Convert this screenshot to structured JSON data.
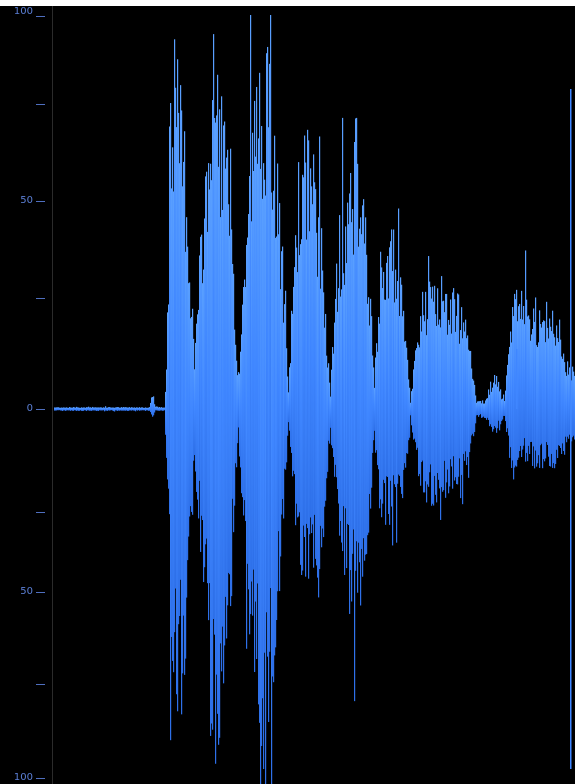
{
  "app": {
    "view": "waveform"
  },
  "amplitude_ruler": {
    "labels": [
      "100",
      "50",
      "0",
      "50",
      "100"
    ],
    "label_color": "#5b7fd6",
    "tick_color": "#4f6fbf"
  },
  "waveform": {
    "fill_color": "#3f86ff",
    "gradient_top": "#5aa0ff",
    "gradient_bottom": "#2d6fe8",
    "background": "#000000",
    "centerline_color": "#6f9ef2"
  }
}
